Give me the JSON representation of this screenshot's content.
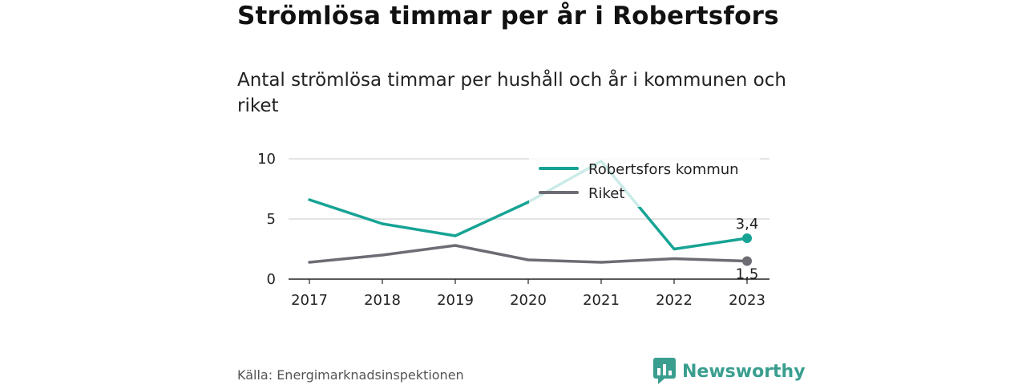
{
  "chart_data": {
    "type": "line",
    "title": "Strömlösa timmar per år i Robertsfors",
    "subtitle": "Antal strömlösa timmar per hushåll och år i kommunen och riket",
    "xlabel": "",
    "ylabel": "",
    "x": [
      "2017",
      "2018",
      "2019",
      "2020",
      "2021",
      "2022",
      "2023"
    ],
    "ylim": [
      0,
      10
    ],
    "yticks": [
      "0",
      "5",
      "10"
    ],
    "grid": true,
    "legend_position": "top-right",
    "series": [
      {
        "name": "Robertsfors kommun",
        "color": "#16a394",
        "values": [
          6.6,
          4.6,
          3.6,
          6.4,
          9.8,
          2.5,
          3.4
        ],
        "end_label": "3,4"
      },
      {
        "name": "Riket",
        "color": "#6d6c74",
        "values": [
          1.4,
          2.0,
          2.8,
          1.6,
          1.4,
          1.7,
          1.5
        ],
        "end_label": "1,5"
      }
    ]
  },
  "footer": {
    "source": "Källa: Energimarknadsinspektionen",
    "brand": "Newsworthy",
    "brand_color": "#3a9e8f"
  }
}
